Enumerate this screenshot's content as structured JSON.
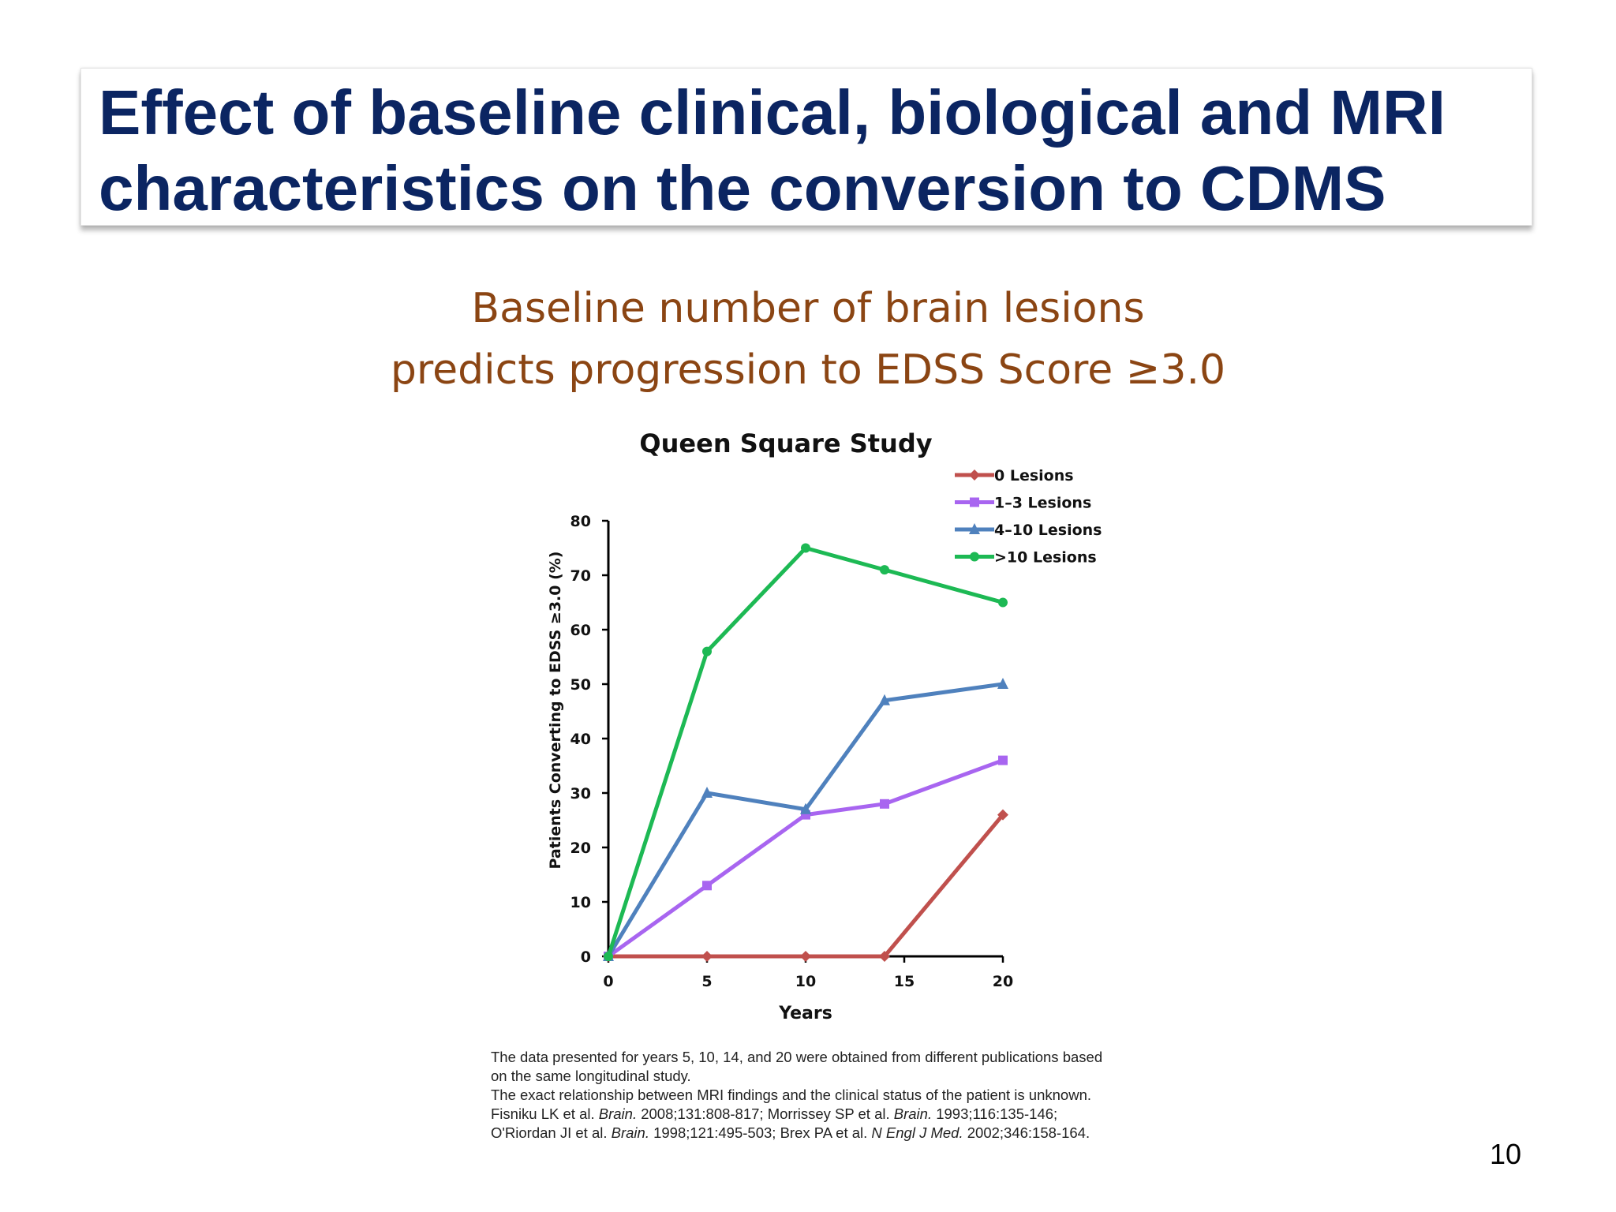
{
  "slide": {
    "title": "Effect of baseline clinical, biological and MRI characteristics on the conversion to CDMS",
    "subtitle_line1": "Baseline number of brain lesions",
    "subtitle_line2": "predicts progression to EDSS Score ≥3.0",
    "page_number": "10"
  },
  "notes": {
    "line1": "The data presented for years 5, 10, 14, and 20 were obtained from different publications based",
    "line2": "on the same longitudinal study.",
    "line3": "The exact relationship between MRI findings and the clinical status of the patient is unknown.",
    "ref1a": "Fisniku LK et al. ",
    "ref1b": "Brain.",
    "ref1c": " 2008;131:808-817; Morrissey SP et al. ",
    "ref1d": "Brain.",
    "ref1e": " 1993;116:135-146;",
    "ref2a": "O'Riordan JI et al. ",
    "ref2b": "Brain.",
    "ref2c": " 1998;121:495-503; Brex PA et al. ",
    "ref2d": "N Engl J Med.",
    "ref2e": " 2002;346:158-164."
  },
  "chart_data": {
    "type": "line",
    "title": "Queen Square Study",
    "xlabel": "Years",
    "ylabel": "Patients Converting to EDSS ≥3.0 (%)",
    "xlim": [
      0,
      20
    ],
    "ylim": [
      0,
      80
    ],
    "xticks": [
      0,
      5,
      10,
      15,
      20
    ],
    "yticks": [
      0,
      10,
      20,
      30,
      40,
      50,
      60,
      70,
      80
    ],
    "grid": false,
    "legend_position": "top-right",
    "series": [
      {
        "name": "0 Lesions",
        "color": "#c0504d",
        "marker": "diamond",
        "x": [
          0,
          5,
          10,
          14,
          20
        ],
        "y": [
          0,
          0,
          0,
          0,
          26
        ]
      },
      {
        "name": "1–3 Lesions",
        "color": "#a865f0",
        "marker": "square",
        "x": [
          0,
          5,
          10,
          14,
          20
        ],
        "y": [
          0,
          13,
          26,
          28,
          36
        ]
      },
      {
        "name": "4–10 Lesions",
        "color": "#4f81bd",
        "marker": "triangle",
        "x": [
          0,
          5,
          10,
          14,
          20
        ],
        "y": [
          0,
          30,
          27,
          47,
          50
        ]
      },
      {
        "name": ">10 Lesions",
        "color": "#1db954",
        "marker": "circle",
        "x": [
          0,
          5,
          10,
          14,
          20
        ],
        "y": [
          0,
          56,
          75,
          71,
          65
        ]
      }
    ]
  }
}
